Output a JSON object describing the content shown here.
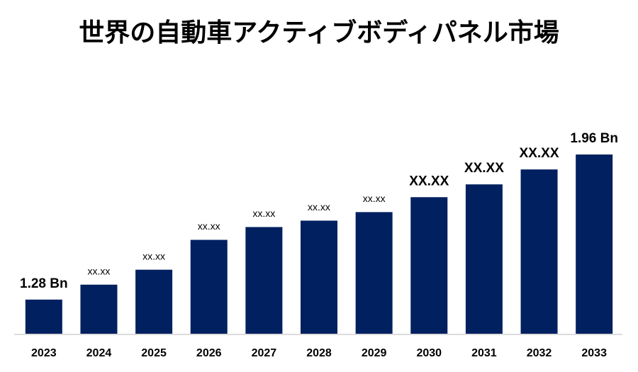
{
  "chart_data": {
    "type": "bar",
    "title": "世界の自動車アクティブボディパネル市場",
    "categories": [
      "2023",
      "2024",
      "2025",
      "2026",
      "2027",
      "2028",
      "2029",
      "2030",
      "2031",
      "2032",
      "2033"
    ],
    "values": [
      1.28,
      1.35,
      1.42,
      1.56,
      1.62,
      1.65,
      1.69,
      1.76,
      1.82,
      1.89,
      1.96
    ],
    "value_labels": [
      "1.28 Bn",
      "xx.xx",
      "xx.xx",
      "xx.xx",
      "xx.xx",
      "xx.xx",
      "xx.xx",
      "XX.XX",
      "XX.XX",
      "XX.XX",
      "1.96 Bn"
    ],
    "color": "#002060",
    "ylim": [
      1.12,
      2.0
    ]
  }
}
